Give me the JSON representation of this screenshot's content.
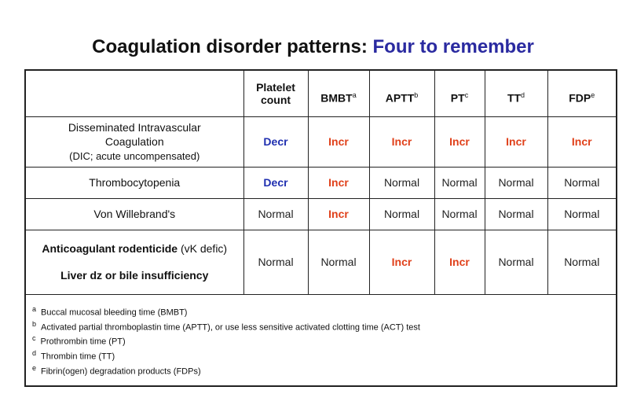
{
  "title": {
    "main": "Coagulation disorder patterns:",
    "accent": "Four to remember"
  },
  "columns": {
    "platelet_line1": "Platelet",
    "platelet_line2": "count",
    "bmbt": "BMBT",
    "bmbt_sup": "a",
    "aptt": "APTT",
    "aptt_sup": "b",
    "pt": "PT",
    "pt_sup": "c",
    "tt": "TT",
    "tt_sup": "d",
    "fdp": "FDP",
    "fdp_sup": "e"
  },
  "rows": [
    {
      "label_line1": "Disseminated Intravascular",
      "label_line2": "Coagulation",
      "label_line3": "(DIC; acute uncompensated)",
      "values": [
        "Decr",
        "Incr",
        "Incr",
        "Incr",
        "Incr",
        "Incr"
      ]
    },
    {
      "label": "Thrombocytopenia",
      "values": [
        "Decr",
        "Incr",
        "Normal",
        "Normal",
        "Normal",
        "Normal"
      ]
    },
    {
      "label": "Von Willebrand's",
      "values": [
        "Normal",
        "Incr",
        "Normal",
        "Normal",
        "Normal",
        "Normal"
      ]
    },
    {
      "label_bold": "Anticoagulant rodenticide",
      "label_tail": " (vK defic)",
      "label2": "Liver dz or bile insufficiency",
      "values": [
        "Normal",
        "Normal",
        "Incr",
        "Incr",
        "Normal",
        "Normal"
      ]
    }
  ],
  "footnotes": [
    {
      "mark": "a",
      "text": "Buccal mucosal bleeding time (BMBT)"
    },
    {
      "mark": "b",
      "text": "Activated partial thromboplastin time  (APTT), or use less sensitive activated clotting time (ACT) test"
    },
    {
      "mark": "c",
      "text": "Prothrombin time (PT)"
    },
    {
      "mark": "d",
      "text": "Thrombin time (TT)"
    },
    {
      "mark": "e",
      "text": "Fibrin(ogen) degradation products (FDPs)"
    }
  ],
  "colors": {
    "decr": "#1f2fb0",
    "incr": "#e0401a",
    "accent": "#2a2aa0"
  }
}
